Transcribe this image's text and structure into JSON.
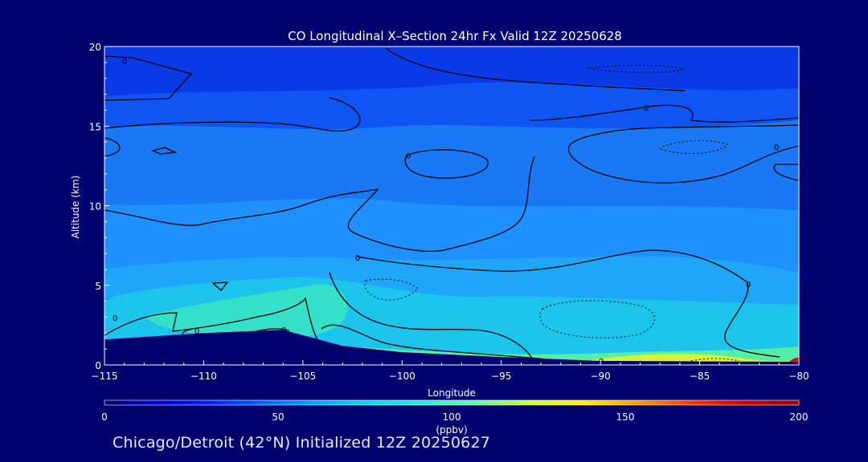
{
  "chart_data": {
    "type": "heatmap",
    "title": "CO Longitudinal X–Section 24hr  Fx Valid 12Z 20250628",
    "xlabel": "Longitude",
    "ylabel": "Altitude (km)",
    "xlim": [
      -115,
      -80
    ],
    "ylim": [
      0,
      20
    ],
    "x_ticks": [
      -115,
      -110,
      -105,
      -100,
      -95,
      -90,
      -85,
      -80
    ],
    "x_tick_labels": [
      "−115",
      "−110",
      "−105",
      "−100",
      "−95",
      "−90",
      "−85",
      "−80"
    ],
    "y_ticks": [
      0,
      5,
      10,
      15,
      20
    ],
    "y_tick_labels": [
      "0",
      "5",
      "10",
      "15",
      "20"
    ],
    "colorbar": {
      "label": "(ppbv)",
      "min": 0,
      "max": 200,
      "ticks": [
        0,
        50,
        100,
        150,
        200
      ],
      "tick_labels": [
        "0",
        "50",
        "100",
        "150",
        "200"
      ],
      "colors": [
        "#00006e",
        "#0000c8",
        "#0022ff",
        "#0066ff",
        "#00aaff",
        "#00ddee",
        "#22eedd",
        "#66ff99",
        "#ccff33",
        "#ffee00",
        "#ff9900",
        "#ff3300",
        "#cc0000",
        "#990000"
      ]
    },
    "contour_label": "0",
    "terrain_km": [
      {
        "lon": -115,
        "alt": 1.6
      },
      {
        "lon": -110,
        "alt": 2.0
      },
      {
        "lon": -106,
        "alt": 2.2
      },
      {
        "lon": -103,
        "alt": 1.2
      },
      {
        "lon": -100,
        "alt": 0.8
      },
      {
        "lon": -95,
        "alt": 0.5
      },
      {
        "lon": -90,
        "alt": 0.25
      },
      {
        "lon": -80,
        "alt": 0.2
      }
    ],
    "grid": false,
    "legend": "colorbar-bottom"
  },
  "footer": {
    "caption": "Chicago/Detroit (42°N) Initialized 12Z 20250627"
  }
}
